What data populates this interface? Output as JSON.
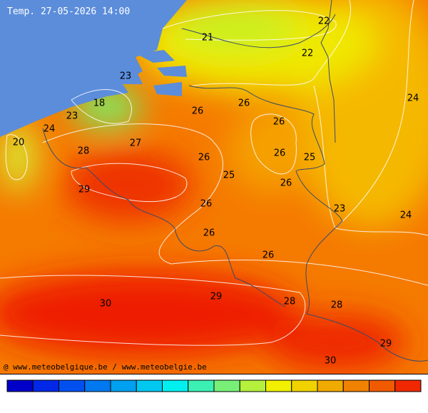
{
  "header": {
    "title": "Temp. 27-05-2026 14:00"
  },
  "footer": {
    "credit": "@ www.meteobelgique.be / www.meteobelgie.be"
  },
  "contour_labels": [
    22,
    21,
    22,
    23,
    18,
    26,
    24,
    26,
    23,
    26,
    24,
    20,
    27,
    28,
    26,
    26,
    25,
    25,
    26,
    29,
    26,
    23,
    24,
    26,
    26,
    29,
    30,
    28,
    28,
    29,
    30
  ],
  "color_scale": [
    "#0000c8",
    "#0028e6",
    "#0050f0",
    "#0078f0",
    "#00a0f0",
    "#00c8f0",
    "#00f0f0",
    "#3cf0b4",
    "#78f078",
    "#b4f03c",
    "#f0f000",
    "#f0d200",
    "#f0aa00",
    "#f08200",
    "#f05a00",
    "#f02800"
  ]
}
